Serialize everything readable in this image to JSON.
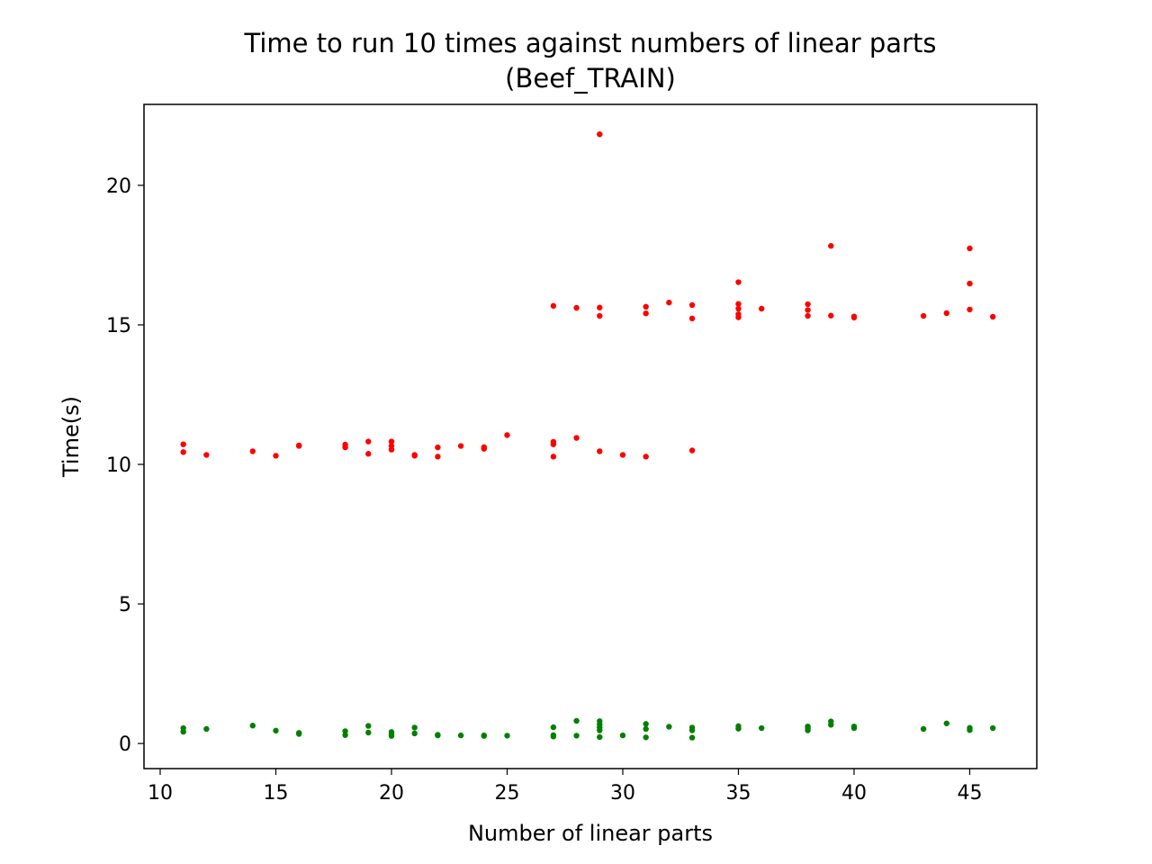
{
  "chart_data": {
    "type": "scatter",
    "title": "Time to run 10 times against numbers of linear parts",
    "subtitle": "(Beef_TRAIN)",
    "xlabel": "Number of linear parts",
    "ylabel": "Time(s)",
    "xlim": [
      9.3,
      47.9
    ],
    "ylim": [
      -0.9,
      22.9
    ],
    "xticks": [
      10,
      15,
      20,
      25,
      30,
      35,
      40,
      45
    ],
    "yticks": [
      0,
      5,
      10,
      15,
      20
    ],
    "grid": false,
    "legend": "none",
    "series": [
      {
        "color": "#ff0000",
        "points": [
          [
            11,
            10.72
          ],
          [
            11,
            10.44
          ],
          [
            12,
            10.34
          ],
          [
            14,
            10.47
          ],
          [
            15,
            10.31
          ],
          [
            16,
            10.66
          ],
          [
            16,
            10.68
          ],
          [
            18,
            10.71
          ],
          [
            18,
            10.61
          ],
          [
            19,
            10.82
          ],
          [
            19,
            10.38
          ],
          [
            20,
            10.82
          ],
          [
            20,
            10.66
          ],
          [
            20,
            10.53
          ],
          [
            21,
            10.34
          ],
          [
            21,
            10.31
          ],
          [
            22,
            10.61
          ],
          [
            22,
            10.28
          ],
          [
            23,
            10.66
          ],
          [
            24,
            10.62
          ],
          [
            24,
            10.56
          ],
          [
            25,
            11.05
          ],
          [
            27,
            10.81
          ],
          [
            27,
            10.72
          ],
          [
            27,
            10.28
          ],
          [
            28,
            10.95
          ],
          [
            29,
            10.47
          ],
          [
            30,
            10.34
          ],
          [
            31,
            10.28
          ],
          [
            33,
            10.5
          ],
          [
            27,
            15.68
          ],
          [
            28,
            15.61
          ],
          [
            29,
            21.83
          ],
          [
            29,
            15.62
          ],
          [
            29,
            15.32
          ],
          [
            31,
            15.65
          ],
          [
            31,
            15.41
          ],
          [
            32,
            15.8
          ],
          [
            33,
            15.71
          ],
          [
            33,
            15.23
          ],
          [
            35,
            16.53
          ],
          [
            35,
            15.75
          ],
          [
            35,
            15.58
          ],
          [
            35,
            15.38
          ],
          [
            35,
            15.27
          ],
          [
            36,
            15.58
          ],
          [
            38,
            15.74
          ],
          [
            38,
            15.53
          ],
          [
            38,
            15.32
          ],
          [
            39,
            17.83
          ],
          [
            39,
            15.33
          ],
          [
            40,
            15.3
          ],
          [
            40,
            15.26
          ],
          [
            43,
            15.32
          ],
          [
            44,
            15.42
          ],
          [
            45,
            17.74
          ],
          [
            45,
            16.48
          ],
          [
            45,
            15.55
          ],
          [
            46,
            15.29
          ]
        ]
      },
      {
        "color": "#008000",
        "points": [
          [
            11,
            0.55
          ],
          [
            11,
            0.42
          ],
          [
            12,
            0.52
          ],
          [
            14,
            0.64
          ],
          [
            15,
            0.46
          ],
          [
            16,
            0.38
          ],
          [
            16,
            0.34
          ],
          [
            18,
            0.44
          ],
          [
            18,
            0.3
          ],
          [
            19,
            0.63
          ],
          [
            19,
            0.39
          ],
          [
            20,
            0.41
          ],
          [
            20,
            0.33
          ],
          [
            20,
            0.27
          ],
          [
            21,
            0.57
          ],
          [
            21,
            0.36
          ],
          [
            22,
            0.31
          ],
          [
            22,
            0.29
          ],
          [
            23,
            0.29
          ],
          [
            24,
            0.29
          ],
          [
            24,
            0.27
          ],
          [
            25,
            0.28
          ],
          [
            27,
            0.58
          ],
          [
            27,
            0.3
          ],
          [
            27,
            0.25
          ],
          [
            28,
            0.81
          ],
          [
            28,
            0.28
          ],
          [
            29,
            0.8
          ],
          [
            29,
            0.68
          ],
          [
            29,
            0.58
          ],
          [
            29,
            0.47
          ],
          [
            29,
            0.23
          ],
          [
            30,
            0.29
          ],
          [
            31,
            0.7
          ],
          [
            31,
            0.52
          ],
          [
            31,
            0.22
          ],
          [
            32,
            0.6
          ],
          [
            33,
            0.57
          ],
          [
            33,
            0.47
          ],
          [
            33,
            0.21
          ],
          [
            35,
            0.62
          ],
          [
            35,
            0.53
          ],
          [
            36,
            0.55
          ],
          [
            38,
            0.61
          ],
          [
            38,
            0.55
          ],
          [
            38,
            0.47
          ],
          [
            39,
            0.79
          ],
          [
            39,
            0.67
          ],
          [
            40,
            0.61
          ],
          [
            40,
            0.55
          ],
          [
            43,
            0.52
          ],
          [
            44,
            0.72
          ],
          [
            45,
            0.56
          ],
          [
            45,
            0.48
          ],
          [
            46,
            0.55
          ]
        ]
      }
    ]
  }
}
